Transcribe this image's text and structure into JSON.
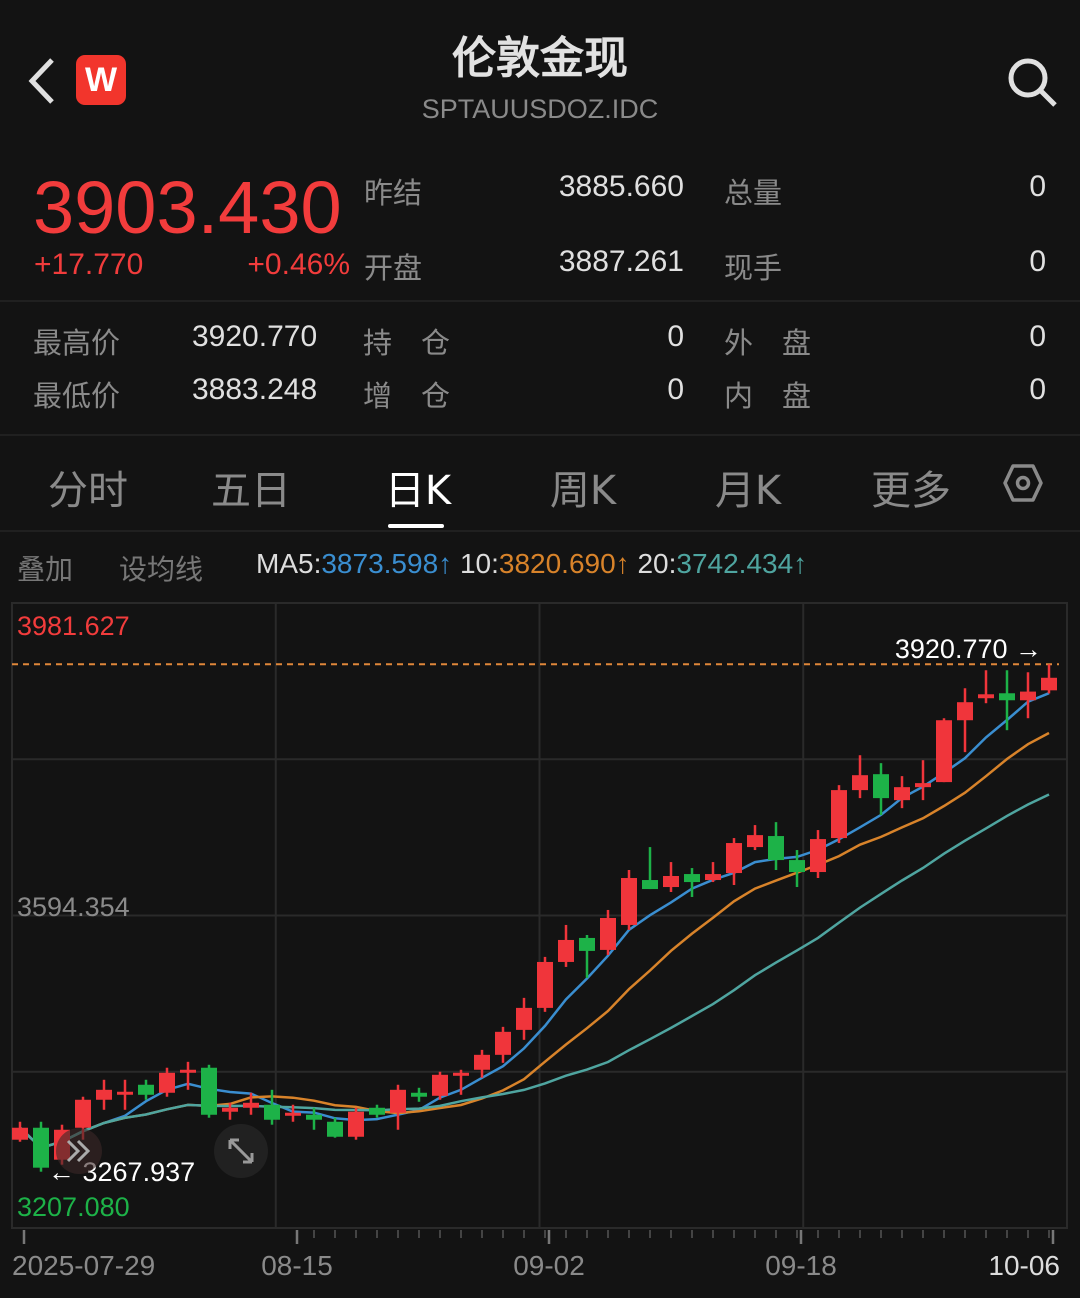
{
  "header": {
    "title": "伦敦金现",
    "symbol": "SPTAUUSDOZ.IDC",
    "logo_text": "W"
  },
  "quote": {
    "last": "3903.430",
    "change": "+17.770",
    "change_pct": "+0.46%",
    "fields": [
      {
        "label": "昨结",
        "value": "3885.660"
      },
      {
        "label": "总量",
        "value": "0"
      },
      {
        "label": "开盘",
        "value": "3887.261"
      },
      {
        "label": "现手",
        "value": "0"
      },
      {
        "label": "最高价",
        "value": "3920.770"
      },
      {
        "label": "持　仓",
        "value": "0"
      },
      {
        "label": "外　盘",
        "value": "0"
      },
      {
        "label": "最低价",
        "value": "3883.248"
      },
      {
        "label": "增　仓",
        "value": "0"
      },
      {
        "label": "内　盘",
        "value": "0"
      }
    ]
  },
  "tabs": [
    {
      "label": "分时"
    },
    {
      "label": "五日"
    },
    {
      "label": "日K",
      "active": true
    },
    {
      "label": "周K"
    },
    {
      "label": "月K"
    },
    {
      "label": "更多"
    }
  ],
  "toolbar": {
    "overlay": "叠加",
    "set_ma": "设均线"
  },
  "ma_legend": {
    "ma5_label": "MA5:",
    "ma5_value": "3873.598↑",
    "ma10_label": "10:",
    "ma10_value": "3820.690↑",
    "ma20_label": "20:",
    "ma20_value": "3742.434↑"
  },
  "colors": {
    "up": "#f0353b",
    "down": "#1db248",
    "ma5": "#3a8ed0",
    "ma10": "#d8832a",
    "ma20": "#4fa5a0",
    "high_line": "#e0873a"
  },
  "chart_data": {
    "type": "candlestick",
    "ylim": [
      3207.08,
      3981.627
    ],
    "y_labels": {
      "top": "3981.627",
      "mid": "3594.354",
      "bottom": "3207.080"
    },
    "max_marker": "3920.770 →",
    "min_marker": "← 3267.937",
    "x_tick_labels": [
      {
        "label": "2025-07-29",
        "index": 0
      },
      {
        "label": "08-15",
        "index": 13
      },
      {
        "label": "09-02",
        "index": 25
      },
      {
        "label": "09-18",
        "index": 37
      },
      {
        "label": "10-06",
        "index": 49
      }
    ],
    "ohlc": [
      [
        3309.1,
        3332.2,
        3306.5,
        3324.5
      ],
      [
        3324.5,
        3332.2,
        3267.937,
        3273.1
      ],
      [
        3283.4,
        3328.4,
        3277.0,
        3321.9
      ],
      [
        3324.5,
        3364.4,
        3309.1,
        3360.5
      ],
      [
        3360.5,
        3386.2,
        3347.6,
        3373.3
      ],
      [
        3368.2,
        3386.2,
        3347.6,
        3370.8
      ],
      [
        3379.8,
        3386.2,
        3360.5,
        3366.9
      ],
      [
        3369.5,
        3401.7,
        3364.4,
        3395.2
      ],
      [
        3396.5,
        3409.3,
        3373.3,
        3399.1
      ],
      [
        3401.7,
        3405.5,
        3337.4,
        3341.2
      ],
      [
        3345.1,
        3356.6,
        3334.8,
        3350.2
      ],
      [
        3350.2,
        3369.5,
        3341.2,
        3356.6
      ],
      [
        3354.1,
        3373.3,
        3328.4,
        3334.8
      ],
      [
        3339.9,
        3354.1,
        3332.2,
        3343.8
      ],
      [
        3341.2,
        3350.2,
        3321.9,
        3334.8
      ],
      [
        3332.2,
        3337.4,
        3311.7,
        3312.9
      ],
      [
        3312.9,
        3350.2,
        3309.1,
        3345.1
      ],
      [
        3350.2,
        3354.1,
        3337.4,
        3341.2
      ],
      [
        3343.8,
        3379.8,
        3321.9,
        3373.3
      ],
      [
        3369.5,
        3375.9,
        3357.9,
        3364.4
      ],
      [
        3365.6,
        3396.5,
        3360.5,
        3392.6
      ],
      [
        3392.6,
        3399.1,
        3366.9,
        3395.2
      ],
      [
        3399.1,
        3424.7,
        3388.8,
        3418.3
      ],
      [
        3418.3,
        3454.3,
        3408.0,
        3447.9
      ],
      [
        3450.4,
        3491.6,
        3437.6,
        3478.7
      ],
      [
        3478.7,
        3544.3,
        3473.6,
        3537.8
      ],
      [
        3537.8,
        3585.4,
        3531.4,
        3566.1
      ],
      [
        3568.7,
        3572.5,
        3517.3,
        3552.0
      ],
      [
        3553.3,
        3604.7,
        3546.8,
        3594.4
      ],
      [
        3585.4,
        3656.1,
        3579.0,
        3645.8
      ],
      [
        3643.2,
        3685.6,
        3631.6,
        3631.6
      ],
      [
        3634.2,
        3666.3,
        3627.8,
        3648.4
      ],
      [
        3650.9,
        3658.6,
        3621.4,
        3640.6
      ],
      [
        3643.2,
        3666.3,
        3640.6,
        3650.9
      ],
      [
        3652.2,
        3697.2,
        3636.8,
        3690.8
      ],
      [
        3685.6,
        3713.9,
        3681.8,
        3701.0
      ],
      [
        3699.8,
        3717.7,
        3656.1,
        3668.9
      ],
      [
        3668.9,
        3681.8,
        3634.2,
        3653.5
      ],
      [
        3653.5,
        3707.5,
        3645.8,
        3695.9
      ],
      [
        3697.2,
        3765.3,
        3690.8,
        3758.9
      ],
      [
        3758.9,
        3803.8,
        3748.6,
        3778.1
      ],
      [
        3779.4,
        3793.6,
        3726.7,
        3748.6
      ],
      [
        3746.0,
        3776.9,
        3735.7,
        3762.7
      ],
      [
        3762.7,
        3797.4,
        3746.0,
        3767.9
      ],
      [
        3769.2,
        3851.4,
        3769.2,
        3848.8
      ],
      [
        3848.8,
        3889.9,
        3807.7,
        3872.0
      ],
      [
        3877.1,
        3913.1,
        3870.7,
        3882.2
      ],
      [
        3883.5,
        3913.1,
        3836.0,
        3874.5
      ],
      [
        3874.5,
        3910.5,
        3851.4,
        3885.66
      ],
      [
        3887.261,
        3920.77,
        3883.248,
        3903.43
      ]
    ],
    "grid": true
  }
}
